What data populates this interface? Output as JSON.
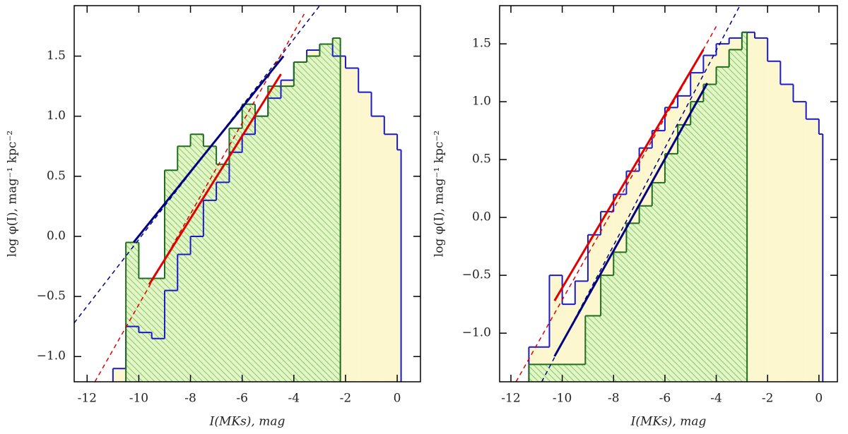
{
  "chart_data": [
    {
      "type": "histogram",
      "xlabel": "I(MKs), mag",
      "ylabel": "log φ(I), mag⁻¹ kpc⁻²",
      "xlim": [
        -12.5,
        0.9
      ],
      "ylim": [
        -1.21,
        1.92
      ],
      "xticks": [
        -12,
        -10,
        -8,
        -6,
        -4,
        -2,
        0
      ],
      "yticks": [
        {
          "value": -1.0,
          "label": "−1.0"
        },
        {
          "value": -0.5,
          "label": "−0.5"
        },
        {
          "value": 0.0,
          "label": "0.0"
        },
        {
          "value": 0.5,
          "label": "0.5"
        },
        {
          "value": 1.0,
          "label": "1.0"
        },
        {
          "value": 1.5,
          "label": "1.5"
        }
      ],
      "series": [
        {
          "color": "#1a1acc",
          "fill": "#fdf7cf",
          "bins": [
            -11,
            -10.5,
            -10,
            -9.5,
            -9,
            -8.5,
            -8,
            -7.5,
            -7,
            -6.5,
            -6,
            -5.5,
            -5,
            -4.5,
            -4,
            -3.5,
            -3,
            -2.5,
            -2,
            -1.5,
            -1,
            -0.5,
            0,
            0.15
          ],
          "values": [
            -1.1,
            -0.75,
            -0.8,
            -0.85,
            -0.45,
            -0.15,
            0.0,
            0.3,
            0.45,
            0.7,
            0.85,
            1.0,
            1.15,
            1.3,
            1.45,
            1.55,
            1.6,
            1.5,
            1.4,
            1.2,
            1.0,
            0.85,
            0.72
          ]
        },
        {
          "color": "#1e6e1e",
          "fill": "hatch",
          "bins": [
            -10.5,
            -10,
            -9.5,
            -9,
            -8.5,
            -8,
            -7.5,
            -7,
            -6.5,
            -6,
            -5.5,
            -5,
            -4.5,
            -4,
            -3.5,
            -3,
            -2.5,
            -2.2
          ],
          "values": [
            -0.05,
            -0.35,
            -0.35,
            0.55,
            0.75,
            0.85,
            0.75,
            0.6,
            0.9,
            1.1,
            1.0,
            1.25,
            1.25,
            1.45,
            1.5,
            1.6,
            1.65
          ]
        }
      ],
      "lines": [
        {
          "color": "#000080",
          "dashed": true,
          "x": [
            -12.5,
            -3.0
          ],
          "values": [
            -0.72,
            1.92
          ]
        },
        {
          "color": "#e00000",
          "dashed": true,
          "x": [
            -11.7,
            -3.6
          ],
          "values": [
            -1.21,
            1.85
          ]
        },
        {
          "color": "#000080",
          "dashed": false,
          "x": [
            -10.2,
            -4.4
          ],
          "values": [
            -0.05,
            1.5
          ]
        },
        {
          "color": "#e00000",
          "dashed": false,
          "x": [
            -9.6,
            -4.5
          ],
          "values": [
            -0.4,
            1.35
          ]
        }
      ]
    },
    {
      "type": "histogram",
      "xlabel": "I(MKs), mag",
      "ylabel": "log φ(I), mag⁻¹ kpc⁻²",
      "xlim": [
        -12.44,
        0.72
      ],
      "ylim": [
        -1.42,
        1.83
      ],
      "xticks": [
        -12,
        -10,
        -8,
        -6,
        -4,
        -2,
        0
      ],
      "yticks": [
        {
          "value": -1.0,
          "label": "−1.0"
        },
        {
          "value": -0.5,
          "label": "−0.5"
        },
        {
          "value": 0.0,
          "label": "0.0"
        },
        {
          "value": 0.5,
          "label": "0.5"
        },
        {
          "value": 1.0,
          "label": "1.0"
        },
        {
          "value": 1.5,
          "label": "1.5"
        }
      ],
      "series": [
        {
          "color": "#1a1acc",
          "fill": "#fdf7cf",
          "bins": [
            -11.3,
            -10.5,
            -10,
            -9.5,
            -9,
            -8.5,
            -8,
            -7.5,
            -7,
            -6.5,
            -6,
            -5.5,
            -5,
            -4.5,
            -4,
            -3.5,
            -3,
            -2.5,
            -2,
            -1.5,
            -1,
            -0.5,
            0,
            0.15
          ],
          "values": [
            -1.12,
            -0.5,
            -0.75,
            -0.55,
            -0.15,
            0.05,
            0.2,
            0.4,
            0.6,
            0.75,
            0.95,
            1.05,
            1.25,
            1.4,
            1.5,
            1.55,
            1.6,
            1.55,
            1.35,
            1.15,
            1.0,
            0.85,
            0.72
          ]
        },
        {
          "color": "#1e6e1e",
          "fill": "hatch",
          "bins": [
            -11.3,
            -9.1,
            -8.5,
            -8,
            -7.5,
            -7,
            -6.5,
            -6,
            -5.5,
            -5,
            -4.5,
            -4,
            -3.5,
            -3,
            -2.8
          ],
          "values": [
            -1.27,
            -0.85,
            -0.5,
            -0.3,
            -0.05,
            0.1,
            0.3,
            0.55,
            0.8,
            1.0,
            1.15,
            1.3,
            1.45,
            1.6
          ]
        }
      ],
      "lines": [
        {
          "color": "#e00000",
          "dashed": true,
          "x": [
            -11.8,
            -4.0
          ],
          "values": [
            -1.42,
            1.65
          ]
        },
        {
          "color": "#000080",
          "dashed": true,
          "x": [
            -10.8,
            -3.08
          ],
          "values": [
            -1.42,
            1.83
          ]
        },
        {
          "color": "#e00000",
          "dashed": false,
          "x": [
            -10.3,
            -4.5
          ],
          "values": [
            -0.72,
            1.45
          ]
        },
        {
          "color": "#000080",
          "dashed": false,
          "x": [
            -10.3,
            -4.35
          ],
          "values": [
            -1.2,
            1.16
          ]
        }
      ]
    }
  ]
}
